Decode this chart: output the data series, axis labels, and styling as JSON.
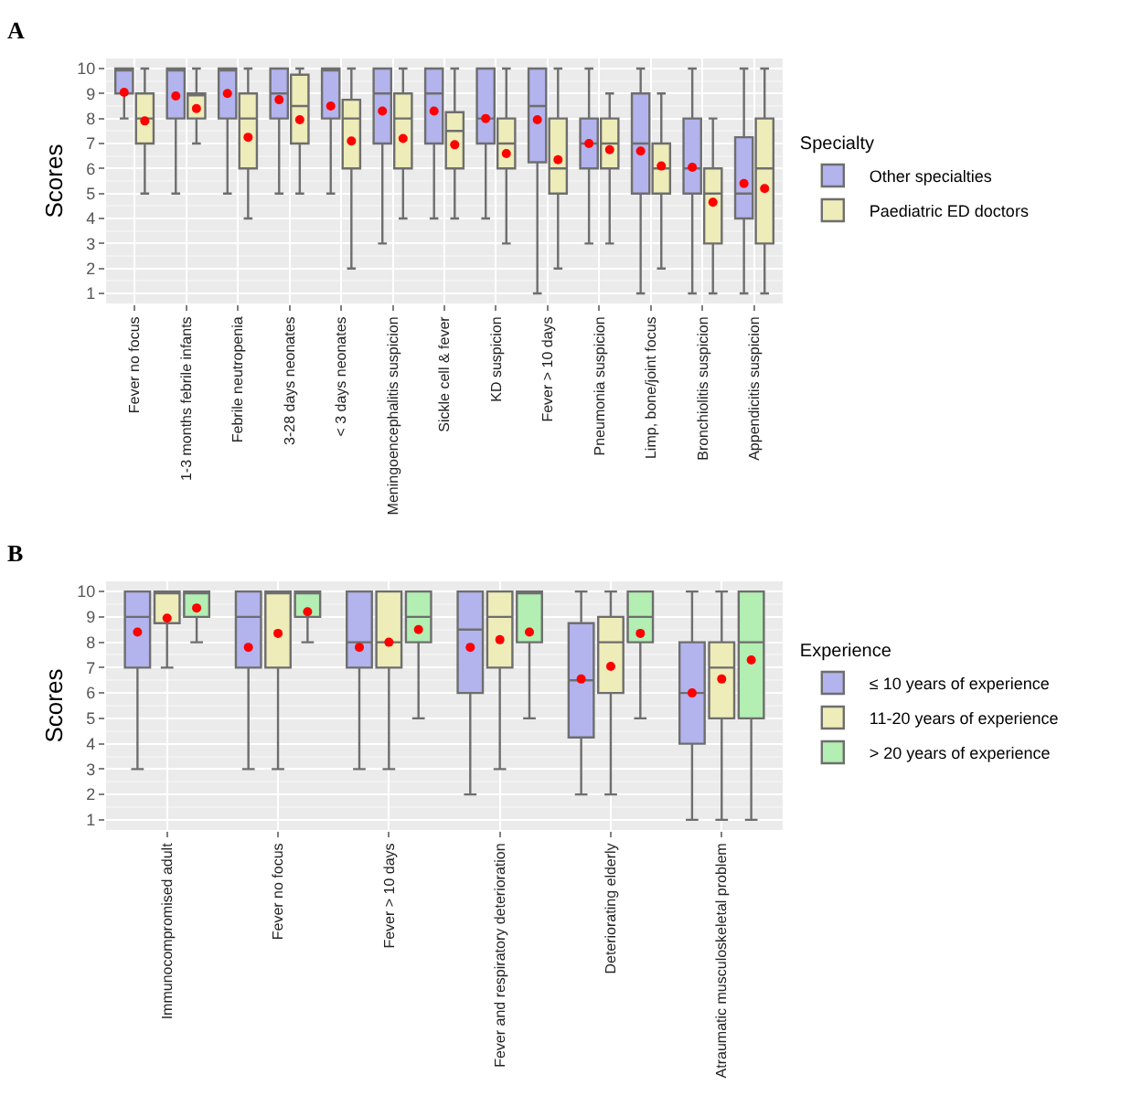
{
  "chart_data": [
    {
      "type": "box",
      "title": "A",
      "ylabel": "Scores",
      "legend_title": "Specialty",
      "legend": "right",
      "grid": true,
      "ylim": [
        0.6,
        10.4
      ],
      "yticks": [
        1,
        2,
        3,
        4,
        5,
        6,
        7,
        8,
        9,
        10
      ],
      "categories": [
        "Fever no focus",
        "1-3 months febrile infants",
        "Febrile neutropenia",
        "3-28 days neonates",
        "< 3 days neonates",
        "Meningoencephalitis suspicion",
        "Sickle cell & fever",
        "KD suspicion",
        "Fever > 10 days",
        "Pneumonia suspicion",
        "Limp, bone/joint focus",
        "Bronchiolitis suspicion",
        "Appendicitis suspicion"
      ],
      "series": [
        {
          "name": "Other specialties",
          "color": "#b3b3ee",
          "boxes": [
            {
              "low": 8,
              "q1": 9,
              "median": 10,
              "q3": 10,
              "high": 10,
              "mean": 9.05
            },
            {
              "low": 5,
              "q1": 8,
              "median": 10,
              "q3": 10,
              "high": 10,
              "mean": 8.9
            },
            {
              "low": 5,
              "q1": 8,
              "median": 10,
              "q3": 10,
              "high": 10,
              "mean": 9.0
            },
            {
              "low": 5,
              "q1": 8,
              "median": 9,
              "q3": 10,
              "high": 10,
              "mean": 8.75
            },
            {
              "low": 5,
              "q1": 8,
              "median": 10,
              "q3": 10,
              "high": 10,
              "mean": 8.5
            },
            {
              "low": 3,
              "q1": 7,
              "median": 9,
              "q3": 10,
              "high": 10,
              "mean": 8.3
            },
            {
              "low": 4,
              "q1": 7,
              "median": 9,
              "q3": 10,
              "high": 10,
              "mean": 8.3
            },
            {
              "low": 4,
              "q1": 7,
              "median": 8,
              "q3": 10,
              "high": 10,
              "mean": 8.0
            },
            {
              "low": 1,
              "q1": 6.25,
              "median": 8.5,
              "q3": 10,
              "high": 10,
              "mean": 7.95
            },
            {
              "low": 3,
              "q1": 6,
              "median": 7,
              "q3": 8,
              "high": 10,
              "mean": 7.0
            },
            {
              "low": 1,
              "q1": 5,
              "median": 7,
              "q3": 9,
              "high": 10,
              "mean": 6.7
            },
            {
              "low": 1,
              "q1": 5,
              "median": 6,
              "q3": 8,
              "high": 10,
              "mean": 6.05
            },
            {
              "low": 1,
              "q1": 4,
              "median": 5,
              "q3": 7.25,
              "high": 10,
              "mean": 5.4
            }
          ]
        },
        {
          "name": "Paediatric ED doctors",
          "color": "#eeecb8",
          "boxes": [
            {
              "low": 5,
              "q1": 7,
              "median": 8,
              "q3": 9,
              "high": 10,
              "mean": 7.9
            },
            {
              "low": 7,
              "q1": 8,
              "median": 9,
              "q3": 9,
              "high": 10,
              "mean": 8.4
            },
            {
              "low": 4,
              "q1": 6,
              "median": 8,
              "q3": 9,
              "high": 10,
              "mean": 7.25
            },
            {
              "low": 5,
              "q1": 7,
              "median": 8.5,
              "q3": 9.75,
              "high": 10,
              "mean": 7.95
            },
            {
              "low": 2,
              "q1": 6,
              "median": 8,
              "q3": 8.75,
              "high": 10,
              "mean": 7.1
            },
            {
              "low": 4,
              "q1": 6,
              "median": 8,
              "q3": 9,
              "high": 10,
              "mean": 7.2
            },
            {
              "low": 4,
              "q1": 6,
              "median": 7.5,
              "q3": 8.25,
              "high": 10,
              "mean": 6.95
            },
            {
              "low": 3,
              "q1": 6,
              "median": 7,
              "q3": 8,
              "high": 10,
              "mean": 6.6
            },
            {
              "low": 2,
              "q1": 5,
              "median": 6,
              "q3": 8,
              "high": 10,
              "mean": 6.35
            },
            {
              "low": 3,
              "q1": 6,
              "median": 7,
              "q3": 8,
              "high": 9,
              "mean": 6.75
            },
            {
              "low": 2,
              "q1": 5,
              "median": 6,
              "q3": 7,
              "high": 9,
              "mean": 6.1
            },
            {
              "low": 1,
              "q1": 3,
              "median": 5,
              "q3": 6,
              "high": 8,
              "mean": 4.65
            },
            {
              "low": 1,
              "q1": 3,
              "median": 6,
              "q3": 8,
              "high": 10,
              "mean": 5.2
            }
          ]
        }
      ]
    },
    {
      "type": "box",
      "title": "B",
      "ylabel": "Scores",
      "legend_title": "Experience",
      "legend": "right",
      "grid": true,
      "ylim": [
        0.6,
        10.4
      ],
      "yticks": [
        1,
        2,
        3,
        4,
        5,
        6,
        7,
        8,
        9,
        10
      ],
      "categories": [
        "Immunocompromised adult",
        "Fever no focus",
        "Fever > 10 days",
        "Fever and respiratory deterioration",
        "Deteriorating elderly",
        "Atraumatic musculoskeletal problem"
      ],
      "series": [
        {
          "name": "≤ 10 years of experience",
          "color": "#b3b3ee",
          "boxes": [
            {
              "low": 3,
              "q1": 7,
              "median": 9,
              "q3": 10,
              "high": 10,
              "mean": 8.4
            },
            {
              "low": 3,
              "q1": 7,
              "median": 9,
              "q3": 10,
              "high": 10,
              "mean": 7.8
            },
            {
              "low": 3,
              "q1": 7,
              "median": 8,
              "q3": 10,
              "high": 10,
              "mean": 7.8
            },
            {
              "low": 2,
              "q1": 6,
              "median": 8.5,
              "q3": 10,
              "high": 10,
              "mean": 7.8
            },
            {
              "low": 2,
              "q1": 4.25,
              "median": 6.5,
              "q3": 8.75,
              "high": 10,
              "mean": 6.55
            },
            {
              "low": 1,
              "q1": 4,
              "median": 6,
              "q3": 8,
              "high": 10,
              "mean": 6.0
            }
          ]
        },
        {
          "name": "11-20 years of experience",
          "color": "#eeecb8",
          "boxes": [
            {
              "low": 7,
              "q1": 8.75,
              "median": 10,
              "q3": 10,
              "high": 10,
              "mean": 8.95
            },
            {
              "low": 3,
              "q1": 7,
              "median": 10,
              "q3": 10,
              "high": 10,
              "mean": 8.35
            },
            {
              "low": 3,
              "q1": 7,
              "median": 8,
              "q3": 10,
              "high": 10,
              "mean": 8.0
            },
            {
              "low": 3,
              "q1": 7,
              "median": 9,
              "q3": 10,
              "high": 10,
              "mean": 8.1
            },
            {
              "low": 2,
              "q1": 6,
              "median": 8,
              "q3": 9,
              "high": 10,
              "mean": 7.05
            },
            {
              "low": 1,
              "q1": 5,
              "median": 7,
              "q3": 8,
              "high": 10,
              "mean": 6.55
            }
          ]
        },
        {
          "name": "> 20 years of experience",
          "color": "#b3eeb3",
          "boxes": [
            {
              "low": 8,
              "q1": 9,
              "median": 10,
              "q3": 10,
              "high": 10,
              "mean": 9.35
            },
            {
              "low": 8,
              "q1": 9,
              "median": 10,
              "q3": 10,
              "high": 10,
              "mean": 9.2
            },
            {
              "low": 5,
              "q1": 8,
              "median": 9,
              "q3": 10,
              "high": 10,
              "mean": 8.5
            },
            {
              "low": 5,
              "q1": 8,
              "median": 10,
              "q3": 10,
              "high": 10,
              "mean": 8.4
            },
            {
              "low": 5,
              "q1": 8,
              "median": 9,
              "q3": 10,
              "high": 10,
              "mean": 8.35
            },
            {
              "low": 1,
              "q1": 5,
              "median": 8,
              "q3": 10,
              "high": 10,
              "mean": 7.3
            }
          ]
        }
      ]
    }
  ]
}
